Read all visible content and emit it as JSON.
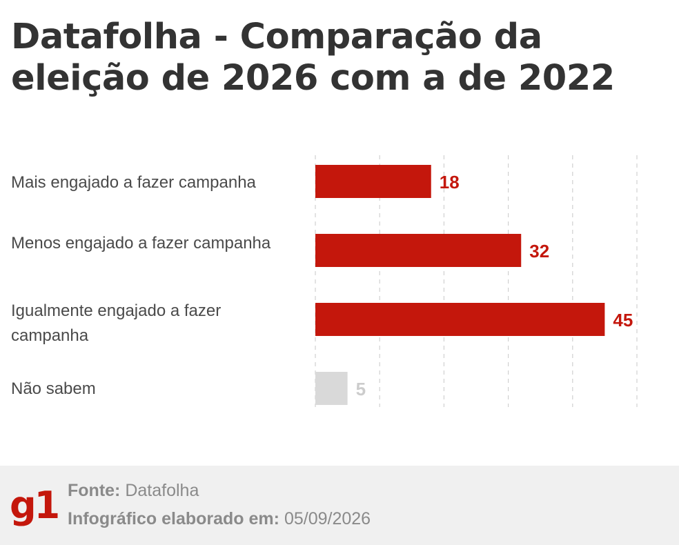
{
  "title": "Datafolha - Comparação da eleição de 2026 com a de 2022",
  "colors": {
    "primary": "#c4170c",
    "muted": "#d9d9d9",
    "muted_text": "#cccccc",
    "grid": "#d0d0d0"
  },
  "chart_data": {
    "type": "bar",
    "orientation": "horizontal",
    "categories": [
      "Mais engajado a fazer campanha",
      "Menos engajado a fazer campanha",
      "Igualmente engajado a fazer campanha",
      "Não sabem"
    ],
    "values": [
      18,
      32,
      45,
      5
    ],
    "data_labels": [
      "18",
      "32",
      "45",
      "5"
    ],
    "xlim": [
      0,
      50
    ],
    "grid": true,
    "title": "Datafolha - Comparação da eleição de 2026 com a de 2022",
    "xlabel": "",
    "ylabel": ""
  },
  "footer": {
    "logo": "g1",
    "source_label": "Fonte:",
    "source_value": "Datafolha",
    "date_label": "Infográfico elaborado em:",
    "date_value": "05/09/2026"
  }
}
